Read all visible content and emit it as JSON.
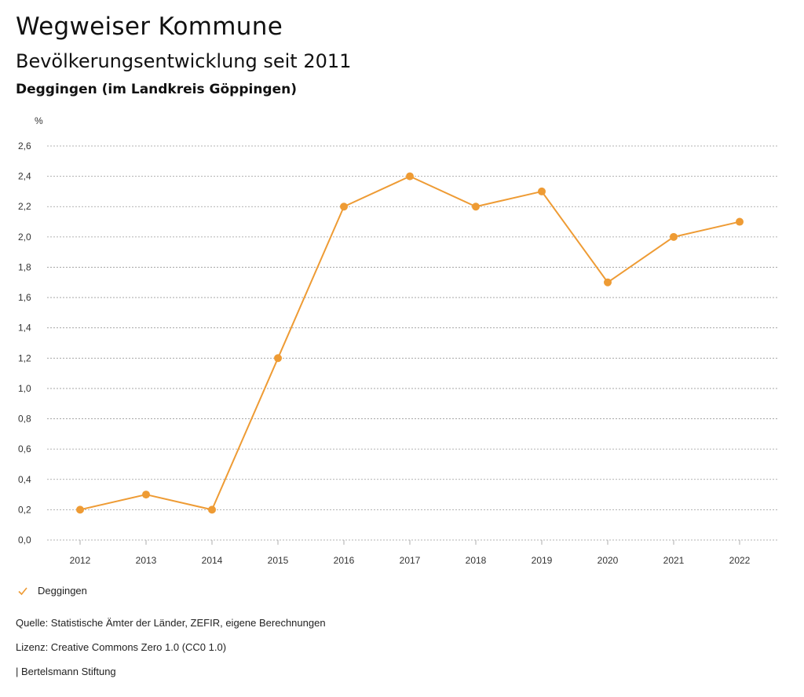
{
  "header": {
    "title": "Wegweiser Kommune",
    "subtitle": "Bevölkerungsentwicklung seit 2011",
    "region": "Deggingen (im Landkreis Göppingen)"
  },
  "chart_data": {
    "type": "line",
    "ylabel": "%",
    "ylim": [
      0,
      2.6
    ],
    "yticks": [
      "0,0",
      "0,2",
      "0,4",
      "0,6",
      "0,8",
      "1,0",
      "1,2",
      "1,4",
      "1,6",
      "1,8",
      "2,0",
      "2,2",
      "2,4",
      "2,6"
    ],
    "categories": [
      "2012",
      "2013",
      "2014",
      "2015",
      "2016",
      "2017",
      "2018",
      "2019",
      "2020",
      "2021",
      "2022"
    ],
    "series": [
      {
        "name": "Deggingen",
        "color": "#ee9b34",
        "values": [
          0.2,
          0.3,
          0.2,
          1.2,
          2.2,
          2.4,
          2.2,
          2.3,
          1.7,
          2.0,
          2.1
        ]
      }
    ],
    "grid": true,
    "legend": "bottom-left"
  },
  "legend": {
    "label": "Deggingen",
    "icon": "check-icon"
  },
  "footer": {
    "source": "Quelle: Statistische Ämter der Länder, ZEFIR, eigene Berechnungen",
    "license": "Lizenz: Creative Commons Zero 1.0 (CC0 1.0)",
    "publisher": "| Bertelsmann Stiftung"
  }
}
